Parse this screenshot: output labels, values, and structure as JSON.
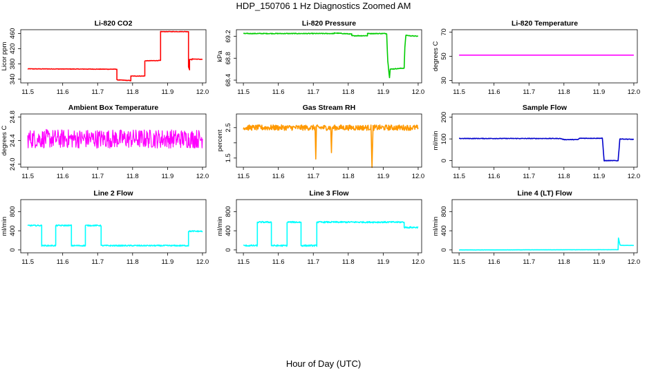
{
  "figure": {
    "title": "HDP_150706  1 Hz Diagnostics Zoomed AM",
    "xlabel": "Hour of Day (UTC)"
  },
  "chart_data": [
    {
      "type": "line",
      "title": "Li-820 CO2",
      "ylabel": "Licor ppm",
      "xlim": [
        11.48,
        12.01
      ],
      "ylim": [
        330,
        470
      ],
      "xticks": [
        11.5,
        11.6,
        11.7,
        11.8,
        11.9,
        12.0
      ],
      "yticks": [
        340,
        380,
        420,
        460
      ],
      "color": "#ff0000",
      "noise": 0.6,
      "x": [
        11.5,
        11.755,
        11.755,
        11.795,
        11.795,
        11.835,
        11.835,
        11.88,
        11.88,
        11.96,
        11.96,
        11.963,
        11.963,
        11.97,
        11.97,
        12.0
      ],
      "y": [
        367,
        366,
        338,
        336,
        348,
        348,
        388,
        389,
        465,
        465,
        372,
        365,
        392,
        391,
        393,
        392
      ]
    },
    {
      "type": "line",
      "title": "Li-820 Pressure",
      "ylabel": "kPa",
      "xlim": [
        11.48,
        12.01
      ],
      "ylim": [
        68.35,
        69.32
      ],
      "xticks": [
        11.5,
        11.6,
        11.7,
        11.8,
        11.9,
        12.0
      ],
      "yticks": [
        68.4,
        68.8,
        69.2
      ],
      "color": "#00cc00",
      "noise": 0.006,
      "x": [
        11.5,
        11.76,
        11.76,
        11.81,
        11.81,
        11.855,
        11.855,
        11.91,
        11.913,
        11.918,
        11.92,
        11.96,
        11.962,
        11.965,
        11.975,
        12.0
      ],
      "y": [
        69.25,
        69.25,
        69.26,
        69.24,
        69.21,
        69.21,
        69.25,
        69.25,
        68.75,
        68.45,
        68.6,
        68.62,
        69.0,
        69.22,
        69.21,
        69.2
      ]
    },
    {
      "type": "line",
      "title": "Li-820 Temperature",
      "ylabel": "degrees C",
      "xlim": [
        11.48,
        12.01
      ],
      "ylim": [
        28,
        72
      ],
      "xticks": [
        11.5,
        11.6,
        11.7,
        11.8,
        11.9,
        12.0
      ],
      "yticks": [
        30,
        50,
        70
      ],
      "color": "#ff00ff",
      "noise": 0,
      "x": [
        11.5,
        12.0
      ],
      "y": [
        51,
        51
      ]
    },
    {
      "type": "line",
      "title": "Ambient Box Temperature",
      "ylabel": "degrees C",
      "xlim": [
        11.48,
        12.01
      ],
      "ylim": [
        23.95,
        24.85
      ],
      "xticks": [
        11.5,
        11.6,
        11.7,
        11.8,
        11.9,
        12.0
      ],
      "yticks": [
        24.0,
        24.4,
        24.8
      ],
      "color": "#ff00ff",
      "noise": 0.16,
      "x": [
        11.5,
        12.0
      ],
      "y": [
        24.43,
        24.43
      ]
    },
    {
      "type": "line",
      "title": "Gas Stream RH",
      "ylabel": "percent",
      "xlim": [
        11.48,
        12.01
      ],
      "ylim": [
        1.2,
        2.95
      ],
      "xticks": [
        11.5,
        11.6,
        11.7,
        11.8,
        11.9,
        12.0
      ],
      "yticks": [
        1.5,
        2.0,
        2.5
      ],
      "ytick_labels": [
        "1.5",
        "",
        "2.5"
      ],
      "color": "#ff9900",
      "noise": 0.09,
      "x": [
        11.5,
        11.705,
        11.707,
        11.709,
        11.75,
        11.752,
        11.754,
        11.865,
        11.868,
        11.871,
        12.0
      ],
      "y": [
        2.5,
        2.5,
        1.45,
        2.5,
        2.5,
        1.7,
        2.5,
        2.5,
        1.25,
        2.5,
        2.5
      ]
    },
    {
      "type": "line",
      "title": "Sample Flow",
      "ylabel": "ml/min",
      "xlim": [
        11.48,
        12.01
      ],
      "ylim": [
        -30,
        215
      ],
      "xticks": [
        11.5,
        11.6,
        11.7,
        11.8,
        11.9,
        12.0
      ],
      "yticks": [
        0,
        100,
        200
      ],
      "color": "#0000cc",
      "noise": 1.2,
      "x": [
        11.5,
        11.79,
        11.8,
        11.84,
        11.845,
        11.91,
        11.915,
        11.955,
        11.96,
        12.0
      ],
      "y": [
        102,
        102,
        97,
        97,
        103,
        103,
        0,
        0,
        100,
        98
      ]
    },
    {
      "type": "line",
      "title": "Line 2 Flow",
      "ylabel": "ml/min",
      "xlim": [
        11.48,
        12.01
      ],
      "ylim": [
        -60,
        1050
      ],
      "xticks": [
        11.5,
        11.6,
        11.7,
        11.8,
        11.9,
        12.0
      ],
      "yticks": [
        0,
        400,
        800
      ],
      "color": "#00ffff",
      "noise": 12,
      "x": [
        11.5,
        11.54,
        11.54,
        11.58,
        11.58,
        11.625,
        11.625,
        11.665,
        11.665,
        11.71,
        11.71,
        11.96,
        11.96,
        12.0
      ],
      "y": [
        510,
        510,
        90,
        90,
        510,
        510,
        90,
        90,
        510,
        510,
        90,
        90,
        390,
        390
      ]
    },
    {
      "type": "line",
      "title": "Line 3 Flow",
      "ylabel": "ml/min",
      "xlim": [
        11.48,
        12.01
      ],
      "ylim": [
        -60,
        1050
      ],
      "xticks": [
        11.5,
        11.6,
        11.7,
        11.8,
        11.9,
        12.0
      ],
      "yticks": [
        0,
        400,
        800
      ],
      "color": "#00ffff",
      "noise": 15,
      "x": [
        11.5,
        11.54,
        11.54,
        11.58,
        11.58,
        11.625,
        11.625,
        11.665,
        11.665,
        11.71,
        11.71,
        11.96,
        11.96,
        12.0
      ],
      "y": [
        90,
        90,
        580,
        580,
        90,
        90,
        580,
        580,
        90,
        90,
        580,
        580,
        470,
        470
      ]
    },
    {
      "type": "line",
      "title": "Line 4 (LT) Flow",
      "ylabel": "ml/min",
      "xlim": [
        11.48,
        12.01
      ],
      "ylim": [
        -60,
        1050
      ],
      "xticks": [
        11.5,
        11.6,
        11.7,
        11.8,
        11.9,
        12.0
      ],
      "yticks": [
        0,
        400,
        800
      ],
      "color": "#00ffff",
      "noise": 1.5,
      "x": [
        11.5,
        11.955,
        11.956,
        11.96,
        11.961,
        11.965,
        12.0
      ],
      "y": [
        0,
        5,
        250,
        120,
        100,
        95,
        95
      ]
    }
  ]
}
